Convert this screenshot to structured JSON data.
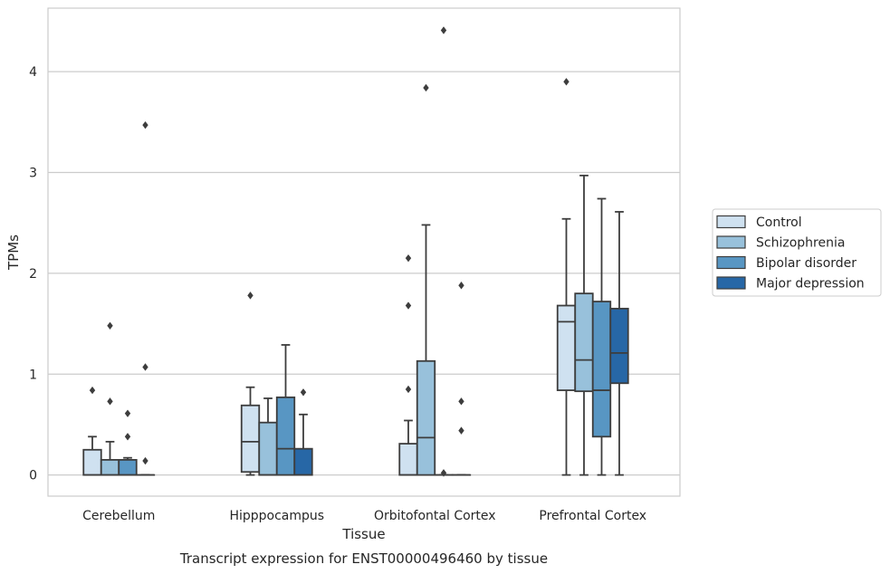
{
  "chart_data": {
    "type": "box",
    "xlabel": "Tissue",
    "ylabel": "TPMs",
    "caption": "Transcript expression for ENST00000496460 by tissue",
    "ylim": [
      -0.21,
      4.63
    ],
    "yticks": [
      0,
      1,
      2,
      3,
      4
    ],
    "grid": "horizontal",
    "legend_position": "right",
    "categories": [
      "Cerebellum",
      "Hipppocampus",
      "Orbitofontal Cortex",
      "Prefrontal Cortex"
    ],
    "series": [
      {
        "name": "Control",
        "color": "#cfe1f0",
        "boxes": [
          {
            "whislo": 0,
            "q1": 0,
            "med": 0,
            "q3": 0.25,
            "whishi": 0.38,
            "fliers": [
              0.84
            ]
          },
          {
            "whislo": 0,
            "q1": 0.03,
            "med": 0.33,
            "q3": 0.69,
            "whishi": 0.87,
            "fliers": [
              1.78
            ]
          },
          {
            "whislo": 0,
            "q1": 0,
            "med": 0,
            "q3": 0.31,
            "whishi": 0.54,
            "fliers": [
              0.85,
              1.68,
              2.15
            ]
          },
          {
            "whislo": 0,
            "q1": 0.84,
            "med": 1.52,
            "q3": 1.68,
            "whishi": 2.54,
            "fliers": [
              3.9
            ]
          }
        ]
      },
      {
        "name": "Schizophrenia",
        "color": "#98c1db",
        "boxes": [
          {
            "whislo": 0,
            "q1": 0,
            "med": 0,
            "q3": 0.15,
            "whishi": 0.33,
            "fliers": [
              0.73,
              1.48
            ]
          },
          {
            "whislo": 0,
            "q1": 0,
            "med": 0,
            "q3": 0.52,
            "whishi": 0.76,
            "fliers": []
          },
          {
            "whislo": 0,
            "q1": 0,
            "med": 0.37,
            "q3": 1.13,
            "whishi": 2.48,
            "fliers": [
              3.84
            ]
          },
          {
            "whislo": 0,
            "q1": 0.83,
            "med": 1.14,
            "q3": 1.8,
            "whishi": 2.97,
            "fliers": []
          }
        ]
      },
      {
        "name": "Bipolar disorder",
        "color": "#5896c3",
        "boxes": [
          {
            "whislo": 0,
            "q1": 0,
            "med": 0,
            "q3": 0.15,
            "whishi": 0.17,
            "fliers": [
              0.38,
              0.61
            ]
          },
          {
            "whislo": 0,
            "q1": 0,
            "med": 0.26,
            "q3": 0.77,
            "whishi": 1.29,
            "fliers": []
          },
          {
            "whislo": 0,
            "q1": 0,
            "med": 0,
            "q3": 0,
            "whishi": 0,
            "fliers": [
              0.02,
              4.41
            ]
          },
          {
            "whislo": 0,
            "q1": 0.38,
            "med": 0.84,
            "q3": 1.72,
            "whishi": 2.74,
            "fliers": []
          }
        ]
      },
      {
        "name": "Major depression",
        "color": "#2767a6",
        "boxes": [
          {
            "whislo": 0,
            "q1": 0,
            "med": 0,
            "q3": 0,
            "whishi": 0,
            "fliers": [
              0.14,
              1.07,
              3.47
            ]
          },
          {
            "whislo": 0,
            "q1": 0,
            "med": 0,
            "q3": 0.26,
            "whishi": 0.6,
            "fliers": [
              0.82
            ]
          },
          {
            "whislo": 0,
            "q1": 0,
            "med": 0,
            "q3": 0,
            "whishi": 0,
            "fliers": [
              0.44,
              0.73,
              1.88
            ]
          },
          {
            "whislo": 0,
            "q1": 0.91,
            "med": 1.21,
            "q3": 1.65,
            "whishi": 2.61,
            "fliers": []
          }
        ]
      }
    ]
  }
}
